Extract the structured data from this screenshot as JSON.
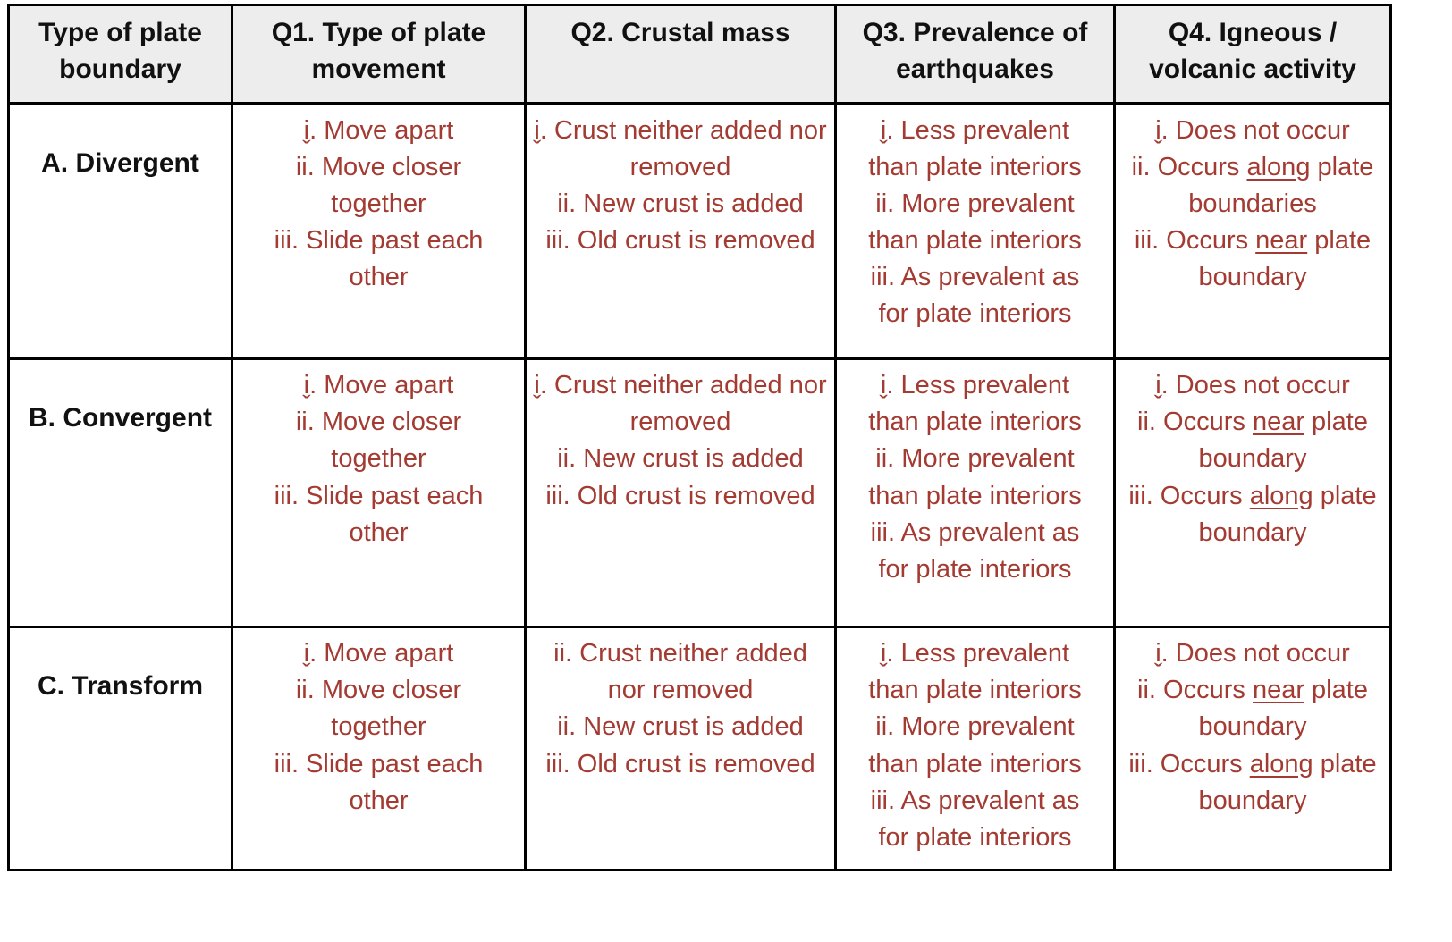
{
  "colors": {
    "border": "#000000",
    "header_bg": "#EDEDED",
    "header_text": "#111111",
    "option_text": "#A33B32"
  },
  "table": {
    "headers": [
      "Type of plate boundary",
      "Q1. Type of plate movement",
      "Q2. Crustal mass",
      "Q3. Prevalence of earthquakes",
      "Q4. Igneous / volcanic activity"
    ],
    "rows": [
      {
        "label": "A. Divergent",
        "cells": [
          [
            "i̬. Move apart",
            "ii. Move closer together",
            "iii. Slide past each other"
          ],
          [
            "i̬. Crust neither added nor removed",
            "ii. New crust is added",
            "iii. Old crust is removed"
          ],
          [
            "i̬. Less prevalent than plate interiors",
            "ii. More prevalent than plate interiors",
            "iii. As prevalent as for plate interiors"
          ],
          [
            "i̬. Does not occur",
            "ii. Occurs _along_ plate boundaries",
            "iii. Occurs _near_ plate boundary"
          ]
        ]
      },
      {
        "label": "B. Convergent",
        "cells": [
          [
            "i̬. Move apart",
            "ii. Move closer together",
            "iii. Slide past each other"
          ],
          [
            "i̬. Crust neither added nor removed",
            "ii. New crust is added",
            "iii. Old crust is removed"
          ],
          [
            "i̬. Less prevalent than plate interiors",
            "ii. More prevalent than plate interiors",
            "iii. As prevalent as for plate interiors"
          ],
          [
            "i̬. Does not occur",
            "ii. Occurs _near_ plate boundary",
            "iii. Occurs _along_ plate boundary"
          ]
        ]
      },
      {
        "label": "C. Transform",
        "cells": [
          [
            "i̬. Move apart",
            "ii. Move closer together",
            "iii. Slide past each other"
          ],
          [
            "ii. Crust neither added nor removed",
            "ii. New crust is added",
            "iii. Old crust is removed"
          ],
          [
            "i̬. Less prevalent than plate interiors",
            "ii. More prevalent than plate interiors",
            "iii. As prevalent as for plate interiors"
          ],
          [
            "i̬. Does not occur",
            "ii. Occurs _near_ plate boundary",
            "iii. Occurs _along_ plate boundary"
          ]
        ]
      }
    ]
  }
}
